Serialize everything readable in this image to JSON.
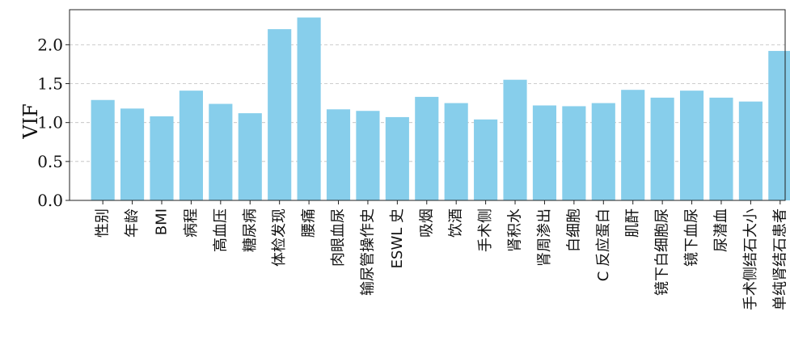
{
  "chart_data": {
    "type": "bar",
    "ylabel": "VIF",
    "ylim": [
      0,
      2.45
    ],
    "yticks": [
      "0.0",
      "0.5",
      "1.0",
      "1.5",
      "2.0"
    ],
    "grid": "y-dashed",
    "bar_color": "#87CEEB",
    "categories": [
      "性别",
      "年龄",
      "BMI",
      "病程",
      "高血压",
      "糖尿病",
      "体检发现",
      "腰痛",
      "肉眼血尿",
      "输尿管操作史",
      "ESWL 史",
      "吸烟",
      "饮酒",
      "手术侧",
      "肾积水",
      "肾周渗出",
      "白细胞",
      "C 反应蛋白",
      "肌酐",
      "镜下白细胞尿",
      "镜下血尿",
      "尿潜血",
      "手术侧结石大小",
      "单纯肾结石患者"
    ],
    "values": [
      1.29,
      1.18,
      1.08,
      1.41,
      1.24,
      1.12,
      2.2,
      2.35,
      1.17,
      1.15,
      1.07,
      1.33,
      1.25,
      1.04,
      1.55,
      1.22,
      1.21,
      1.25,
      1.42,
      1.32,
      1.41,
      1.32,
      1.27,
      1.92
    ]
  }
}
